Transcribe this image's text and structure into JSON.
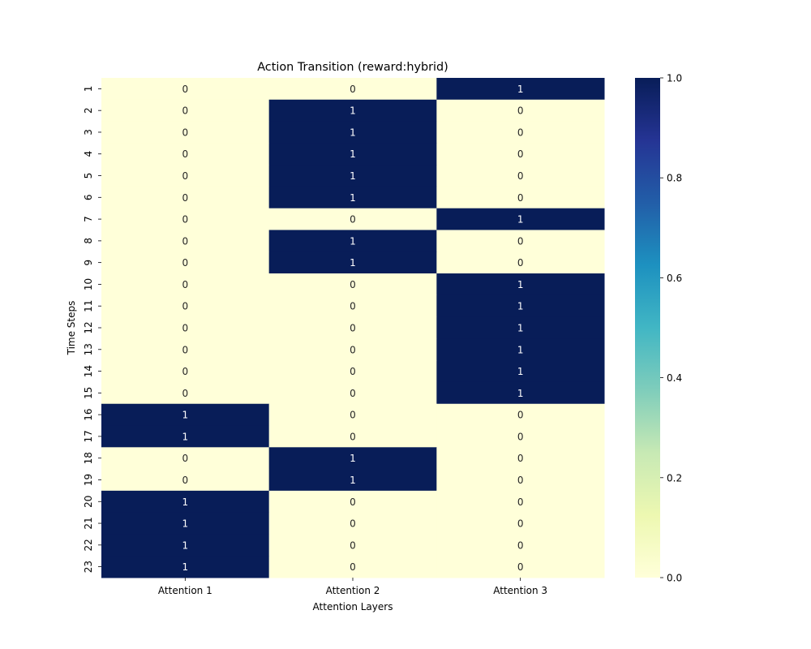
{
  "chart_data": {
    "type": "heatmap",
    "title": "Action Transition   (reward:hybrid)",
    "xlabel": "Attention Layers",
    "ylabel": "Time Steps",
    "x_categories": [
      "Attention 1",
      "Attention 2",
      "Attention 3"
    ],
    "y_categories": [
      "1",
      "2",
      "3",
      "4",
      "5",
      "6",
      "7",
      "8",
      "9",
      "10",
      "11",
      "12",
      "13",
      "14",
      "15",
      "16",
      "17",
      "18",
      "19",
      "20",
      "21",
      "22",
      "23"
    ],
    "values": [
      [
        0,
        0,
        1
      ],
      [
        0,
        1,
        0
      ],
      [
        0,
        1,
        0
      ],
      [
        0,
        1,
        0
      ],
      [
        0,
        1,
        0
      ],
      [
        0,
        1,
        0
      ],
      [
        0,
        0,
        1
      ],
      [
        0,
        1,
        0
      ],
      [
        0,
        1,
        0
      ],
      [
        0,
        0,
        1
      ],
      [
        0,
        0,
        1
      ],
      [
        0,
        0,
        1
      ],
      [
        0,
        0,
        1
      ],
      [
        0,
        0,
        1
      ],
      [
        0,
        0,
        1
      ],
      [
        1,
        0,
        0
      ],
      [
        1,
        0,
        0
      ],
      [
        0,
        1,
        0
      ],
      [
        0,
        1,
        0
      ],
      [
        1,
        0,
        0
      ],
      [
        1,
        0,
        0
      ],
      [
        1,
        0,
        0
      ],
      [
        1,
        0,
        0
      ]
    ],
    "colormap": "YlGnBu",
    "vmin": 0.0,
    "vmax": 1.0,
    "colorbar_ticks": [
      "0.0",
      "0.2",
      "0.4",
      "0.6",
      "0.8",
      "1.0"
    ],
    "annotations": true,
    "grid": false
  }
}
